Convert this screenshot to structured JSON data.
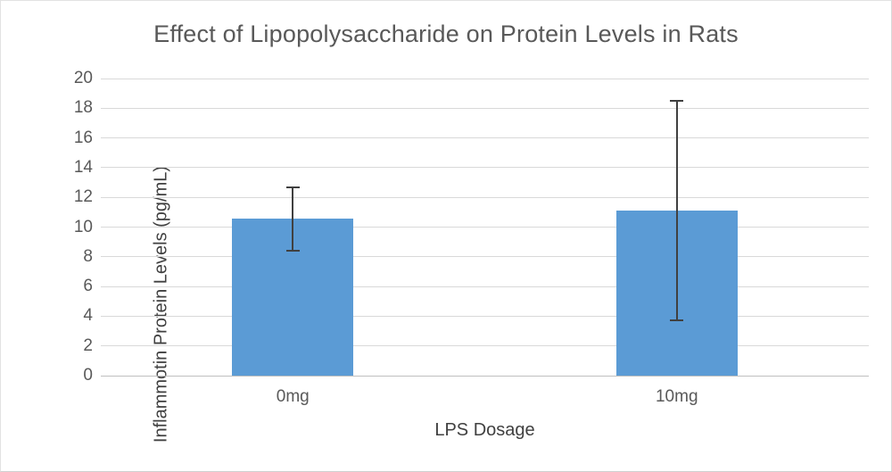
{
  "chart_data": {
    "type": "bar",
    "title": "Effect of Lipopolysaccharide on Protein Levels in Rats",
    "xlabel": "LPS Dosage",
    "ylabel": "Inflammotin Protein Levels (pg/mL)",
    "categories": [
      "0mg",
      "10mg"
    ],
    "values": [
      10.6,
      11.1
    ],
    "error_bars": [
      {
        "low": 8.4,
        "high": 12.7
      },
      {
        "low": 3.7,
        "high": 18.5
      }
    ],
    "ylim": [
      0,
      20
    ],
    "ytick_step": 2,
    "yticks": [
      0,
      2,
      4,
      6,
      8,
      10,
      12,
      14,
      16,
      18,
      20
    ],
    "grid": "horizontal",
    "legend": "none",
    "colors": {
      "bar": "#5b9bd5",
      "error_bar": "#404040",
      "gridline": "#d9d9d9",
      "axis_line": "#bfbfbf",
      "tick_text": "#595959",
      "title_text": "#595959",
      "axis_title_text": "#404040",
      "background": "#ffffff"
    }
  }
}
